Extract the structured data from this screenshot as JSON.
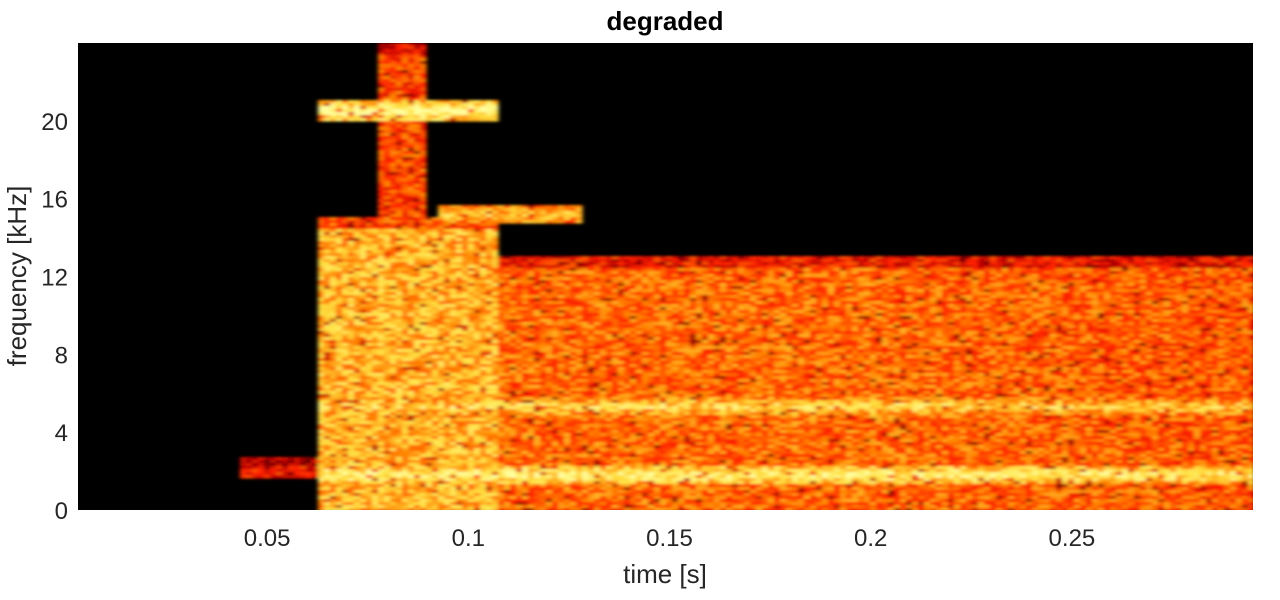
{
  "chart_data": {
    "type": "heatmap",
    "title": "degraded",
    "xlabel": "time [s]",
    "ylabel": "frequency [kHz]",
    "xlim": [
      0.003,
      0.295
    ],
    "ylim": [
      0,
      24
    ],
    "x_ticks": [
      0.05,
      0.1,
      0.15,
      0.2,
      0.25
    ],
    "x_tick_labels": [
      "0.05",
      "0.1",
      "0.15",
      "0.2",
      "0.25"
    ],
    "y_ticks": [
      0,
      4,
      8,
      12,
      16,
      20
    ],
    "y_tick_labels": [
      "0",
      "4",
      "8",
      "12",
      "16",
      "20"
    ],
    "colormap": [
      "#000000",
      "#5a0000",
      "#b00000",
      "#ff2000",
      "#ff8000",
      "#ffe040",
      "#ffffa0"
    ],
    "background": "#000000",
    "regions": [
      {
        "t": [
          0.044,
          0.063
        ],
        "f": [
          1.6,
          2.8
        ],
        "level": 0.45
      },
      {
        "t": [
          0.063,
          0.108
        ],
        "f": [
          0,
          15
        ],
        "level": 0.75
      },
      {
        "t": [
          0.108,
          0.295
        ],
        "f": [
          0,
          13
        ],
        "level": 0.62
      },
      {
        "t": [
          0.063,
          0.108
        ],
        "f": [
          20,
          21
        ],
        "level": 0.75
      },
      {
        "t": [
          0.093,
          0.128
        ],
        "f": [
          14.9,
          15.5
        ],
        "level": 0.6
      },
      {
        "t": [
          0.077,
          0.09
        ],
        "f": [
          0,
          24
        ],
        "level": 0.55
      }
    ],
    "bands": [
      {
        "f": 1.8,
        "t": [
          0.063,
          0.295
        ],
        "level": 0.95
      },
      {
        "f": 5.3,
        "t": [
          0.063,
          0.295
        ],
        "level": 0.85
      },
      {
        "f": 20.5,
        "t": [
          0.063,
          0.108
        ],
        "level": 1.0
      },
      {
        "f": 15.2,
        "t": [
          0.093,
          0.128
        ],
        "level": 0.8
      }
    ],
    "grid": false
  }
}
